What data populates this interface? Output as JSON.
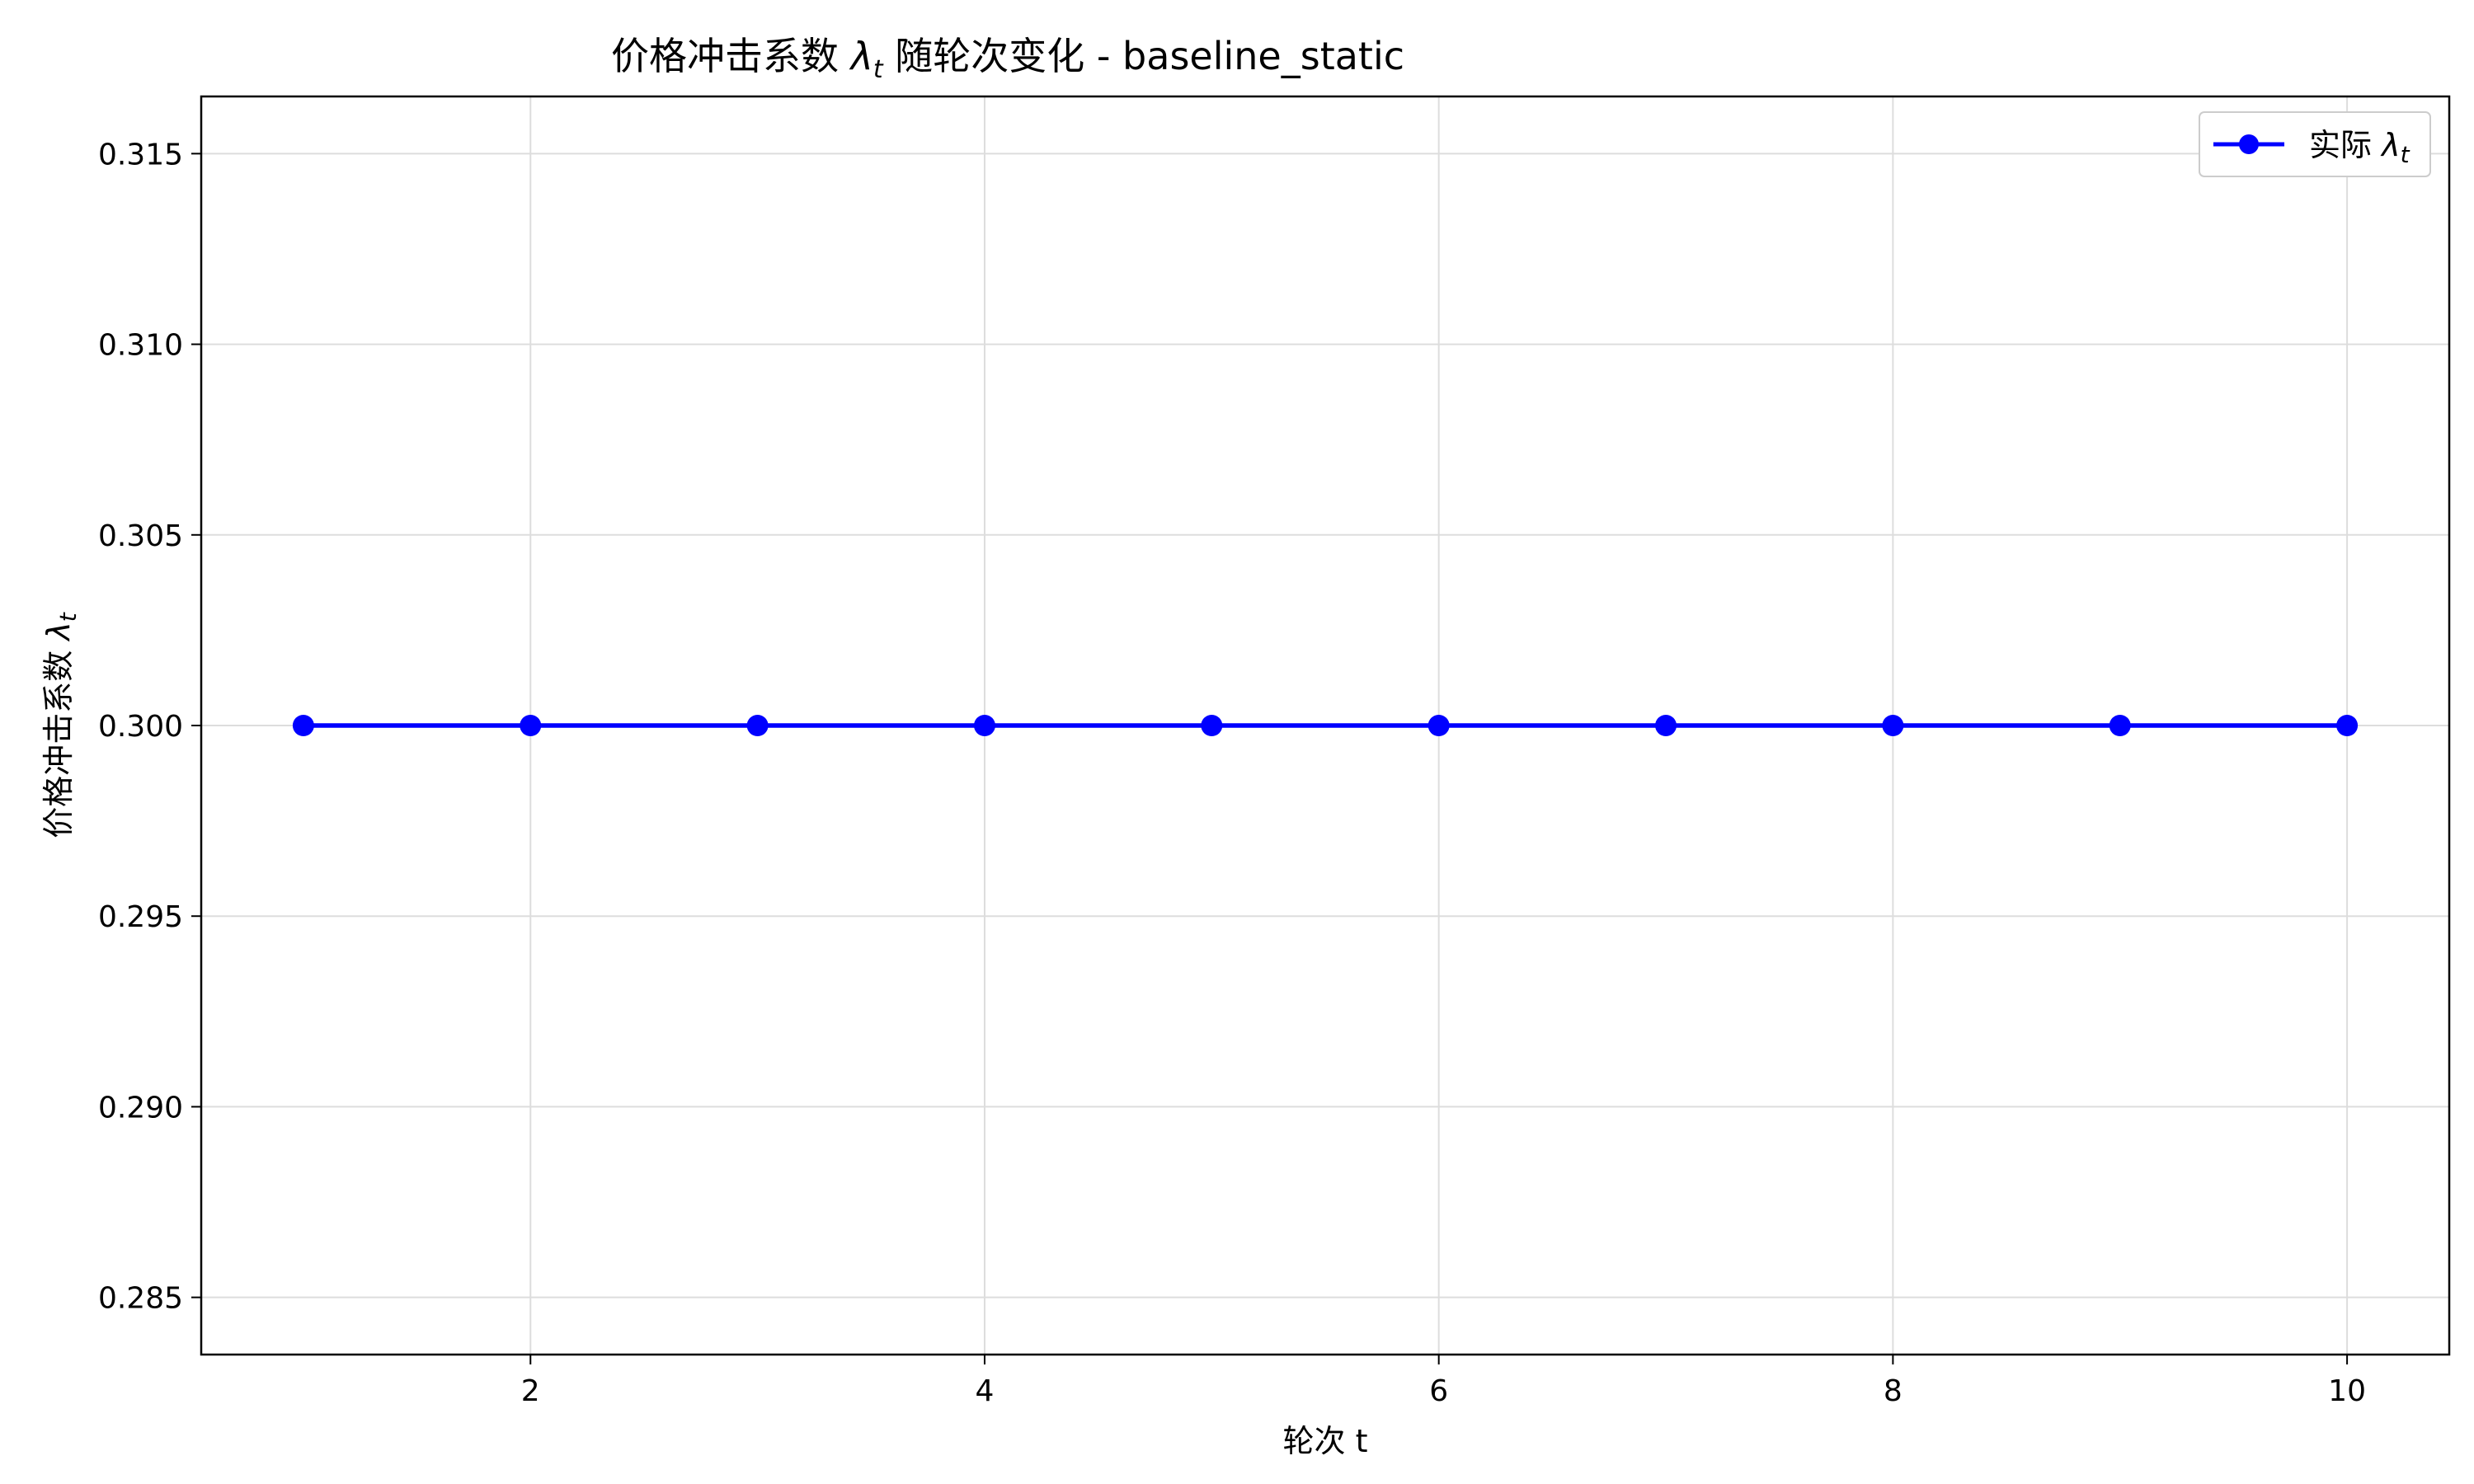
{
  "chart_data": {
    "type": "line",
    "title_main": "价格冲击系数 ",
    "title_symbol": "λ",
    "title_sub": "t",
    "title_rest": " 随轮次变化 - baseline_static",
    "xlabel": "轮次 t",
    "ylabel_main": "价格冲击系数 ",
    "ylabel_symbol": "λ",
    "ylabel_sub": "t",
    "xlim": [
      0.55,
      10.45
    ],
    "ylim": [
      0.2835,
      0.3165
    ],
    "x_ticks": [
      2,
      4,
      6,
      8,
      10
    ],
    "y_ticks": [
      0.285,
      0.29,
      0.295,
      0.3,
      0.305,
      0.31,
      0.315
    ],
    "y_tick_labels": [
      "0.285",
      "0.290",
      "0.295",
      "0.300",
      "0.305",
      "0.310",
      "0.315"
    ],
    "grid": true,
    "legend_position": "top-right",
    "series": [
      {
        "name_main": "实际 ",
        "name_symbol": "λ",
        "name_sub": "t",
        "color": "#0000ff",
        "marker": "circle",
        "x": [
          1,
          2,
          3,
          4,
          5,
          6,
          7,
          8,
          9,
          10
        ],
        "y": [
          0.3,
          0.3,
          0.3,
          0.3,
          0.3,
          0.3,
          0.3,
          0.3,
          0.3,
          0.3
        ]
      }
    ]
  }
}
